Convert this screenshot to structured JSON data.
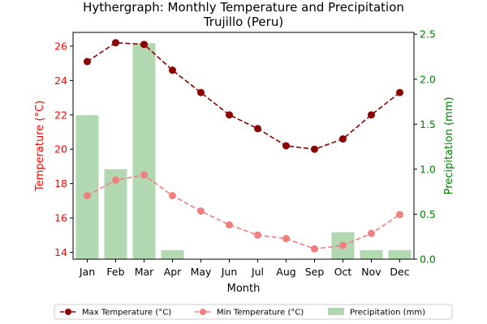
{
  "chart_data": {
    "type": "bar+line",
    "title_line1": "Hythergraph: Monthly Temperature and Precipitation",
    "title_line2": "Trujillo (Peru)",
    "xlabel": "Month",
    "ylabel_left": "Temperature (°C)",
    "ylabel_right": "Precipitation (mm)",
    "categories": [
      "Jan",
      "Feb",
      "Mar",
      "Apr",
      "May",
      "Jun",
      "Jul",
      "Aug",
      "Sep",
      "Oct",
      "Nov",
      "Dec"
    ],
    "y_left_lim": [
      13.6,
      26.8
    ],
    "y_left_ticks": [
      14,
      16,
      18,
      20,
      22,
      24,
      26
    ],
    "y_right_lim": [
      0,
      2.52
    ],
    "y_right_ticks": [
      0.0,
      0.5,
      1.0,
      1.5,
      2.0,
      2.5
    ],
    "y_right_tick_labels": [
      "0.0",
      "0.5",
      "1.0",
      "1.5",
      "2.0",
      "2.5"
    ],
    "series": [
      {
        "name": "Max Temperature (°C)",
        "kind": "line",
        "axis": "left",
        "color": "#8b0000",
        "values": [
          25.1,
          26.2,
          26.1,
          24.6,
          23.3,
          22.0,
          21.2,
          20.2,
          20.0,
          20.6,
          22.0,
          23.3
        ]
      },
      {
        "name": "Min Temperature (°C)",
        "kind": "line",
        "axis": "left",
        "color": "#f08080",
        "values": [
          17.3,
          18.2,
          18.5,
          17.3,
          16.4,
          15.6,
          15.0,
          14.8,
          14.2,
          14.4,
          15.1,
          16.2
        ]
      },
      {
        "name": "Precipitation (mm)",
        "kind": "bar",
        "axis": "right",
        "color": "#b2d8b2",
        "values": [
          1.6,
          1.0,
          2.4,
          0.1,
          0.0,
          0.0,
          0.0,
          0.0,
          0.0,
          0.3,
          0.1,
          0.1
        ]
      }
    ],
    "left_axis_color": "#ff0000",
    "right_axis_color": "#008000",
    "grid": false,
    "legend_position": "bottom-center"
  }
}
